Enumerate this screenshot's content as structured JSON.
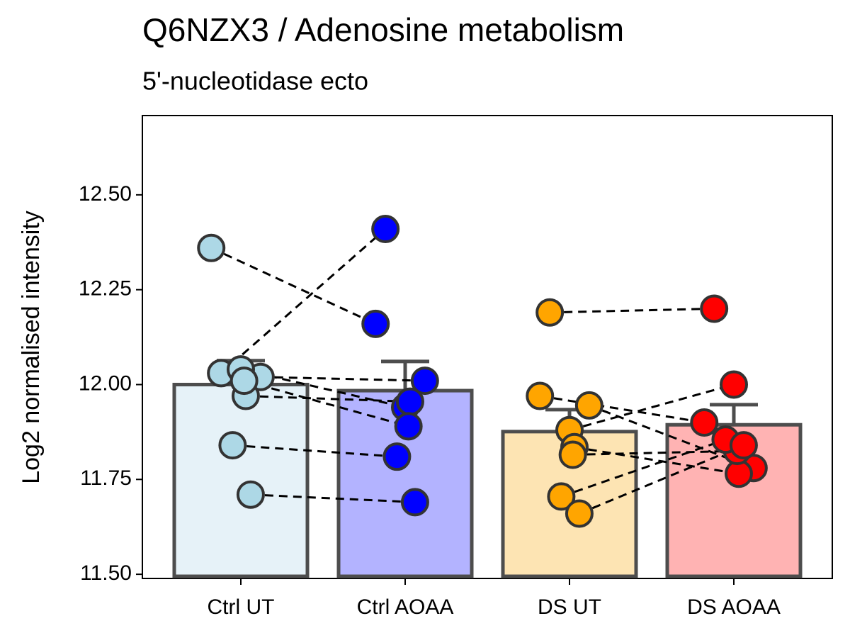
{
  "chart_data": {
    "type": "bar",
    "title": "Q6NZX3 / Adenosine metabolism",
    "subtitle": "5'-nucleotidase ecto",
    "y_label": "Log2 normalised intensity",
    "categories": [
      "Ctrl UT",
      "Ctrl AOAA",
      "DS UT",
      "DS AOAA"
    ],
    "values": [
      12.0,
      11.984,
      11.876,
      11.894
    ],
    "errors": [
      0.063,
      0.077,
      0.058,
      0.053
    ],
    "bar_colors": [
      "#e6f2f8",
      "#b3b3ff",
      "#fde4b3",
      "#ffb3b3"
    ],
    "point_colors": [
      "#add8e6",
      "#0000ff",
      "#ffa500",
      "#ff0000"
    ],
    "points": [
      [
        12.03,
        12.36,
        12.02,
        12.04,
        11.97,
        12.01,
        11.84,
        11.71
      ],
      [
        12.41,
        12.16,
        12.01,
        11.94,
        11.955,
        11.89,
        11.81,
        11.69
      ],
      [
        12.19,
        11.97,
        11.945,
        11.88,
        11.835,
        11.815,
        11.705,
        11.66
      ],
      [
        12.2,
        11.9,
        11.78,
        12.0,
        11.765,
        11.825,
        11.855,
        11.84
      ]
    ],
    "ylim": [
      11.489,
      12.709
    ],
    "yticks": [
      {
        "value": 11.5,
        "label": "11.50"
      },
      {
        "value": 11.75,
        "label": "11.75"
      },
      {
        "value": 12.0,
        "label": "12.00"
      },
      {
        "value": 12.25,
        "label": "12.25"
      },
      {
        "value": 12.5,
        "label": "12.50"
      }
    ],
    "grid": false
  }
}
